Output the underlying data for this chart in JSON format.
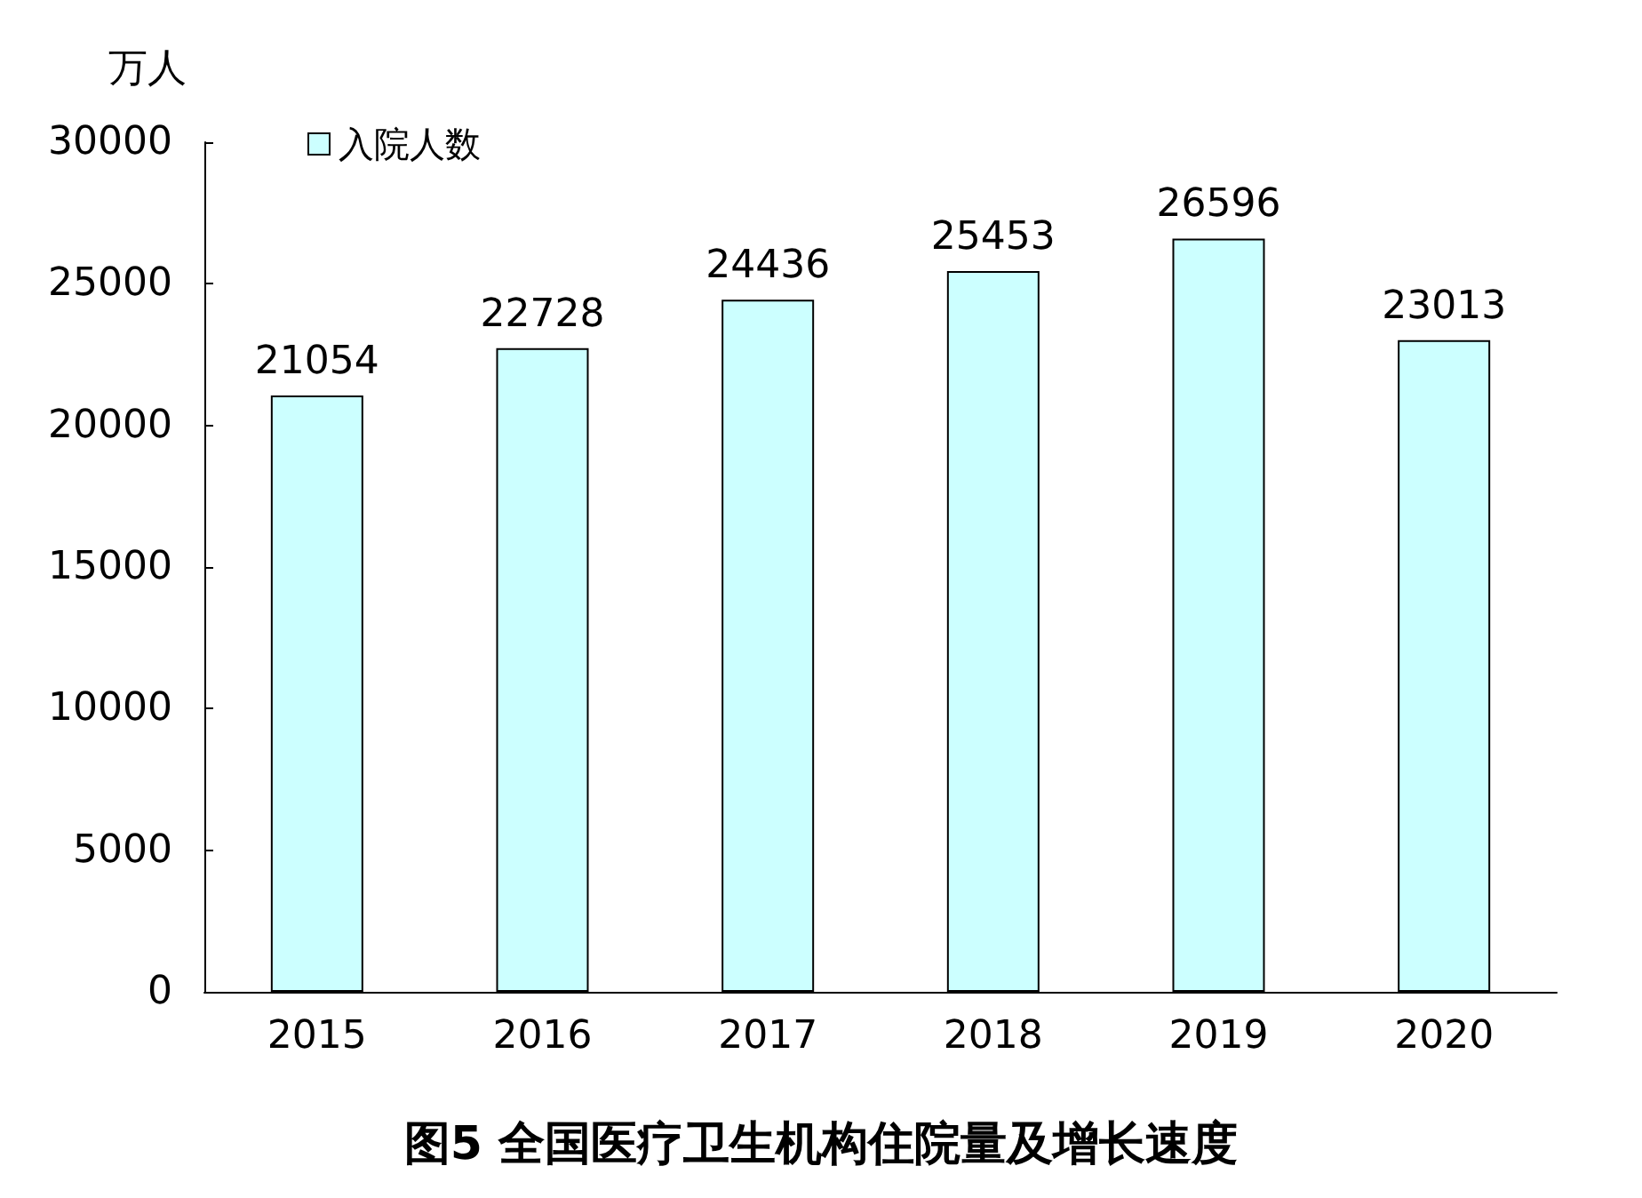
{
  "chart_data": {
    "type": "bar",
    "title": "图5 全国医疗卫生机构住院量及增长速度",
    "ylabel": "万人",
    "categories": [
      "2015",
      "2016",
      "2017",
      "2018",
      "2019",
      "2020"
    ],
    "series": [
      {
        "name": "入院人数",
        "color": "#ccffff",
        "values": [
          21054,
          22728,
          24436,
          25453,
          26596,
          23013
        ]
      }
    ],
    "ylim": [
      0,
      30000
    ],
    "yticks": [
      0,
      5000,
      10000,
      15000,
      20000,
      25000,
      30000
    ],
    "data_labels": true,
    "legend": "top left",
    "grid": false
  }
}
